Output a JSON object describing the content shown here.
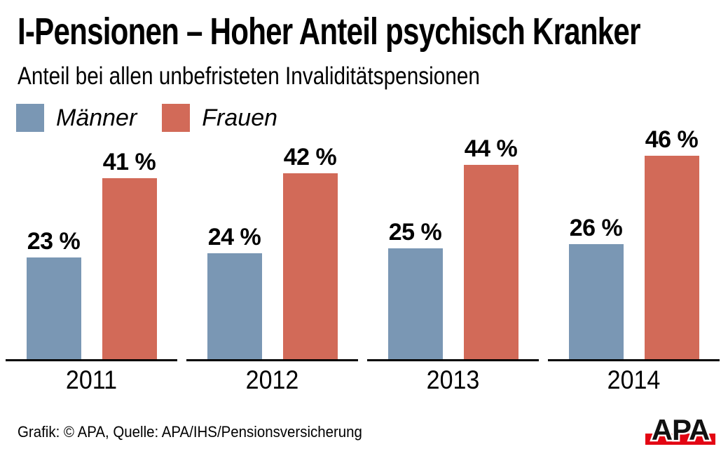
{
  "header": {
    "title": "I-Pensionen – Hoher Anteil psychisch Kranker",
    "subtitle": "Anteil bei allen unbefristeten Invaliditätspensionen"
  },
  "legend": {
    "items": [
      {
        "label": "Männer",
        "color": "#7a97b4"
      },
      {
        "label": "Frauen",
        "color": "#d26a58"
      }
    ]
  },
  "chart_data": {
    "type": "bar",
    "title": "I-Pensionen – Hoher Anteil psychisch Kranker",
    "subtitle": "Anteil bei allen unbefristeten Invaliditätspensionen",
    "categories": [
      "2011",
      "2012",
      "2013",
      "2014"
    ],
    "series": [
      {
        "name": "Männer",
        "color": "#7a97b4",
        "values": [
          23,
          24,
          25,
          26
        ]
      },
      {
        "name": "Frauen",
        "color": "#d26a58",
        "values": [
          41,
          42,
          44,
          46
        ]
      }
    ],
    "value_label_suffix": " %",
    "unit": "percent",
    "xlabel": "",
    "ylabel": "",
    "ylim": [
      0,
      50
    ],
    "grid": false,
    "legend_position": "top-left",
    "baseline_per_group": true
  },
  "footer": {
    "credit": "Grafik: © APA, Quelle: APA/IHS/Pensionsversicherung"
  },
  "logo": {
    "text": "APA",
    "text_color": "#111111",
    "bar_color": "#e30613"
  }
}
